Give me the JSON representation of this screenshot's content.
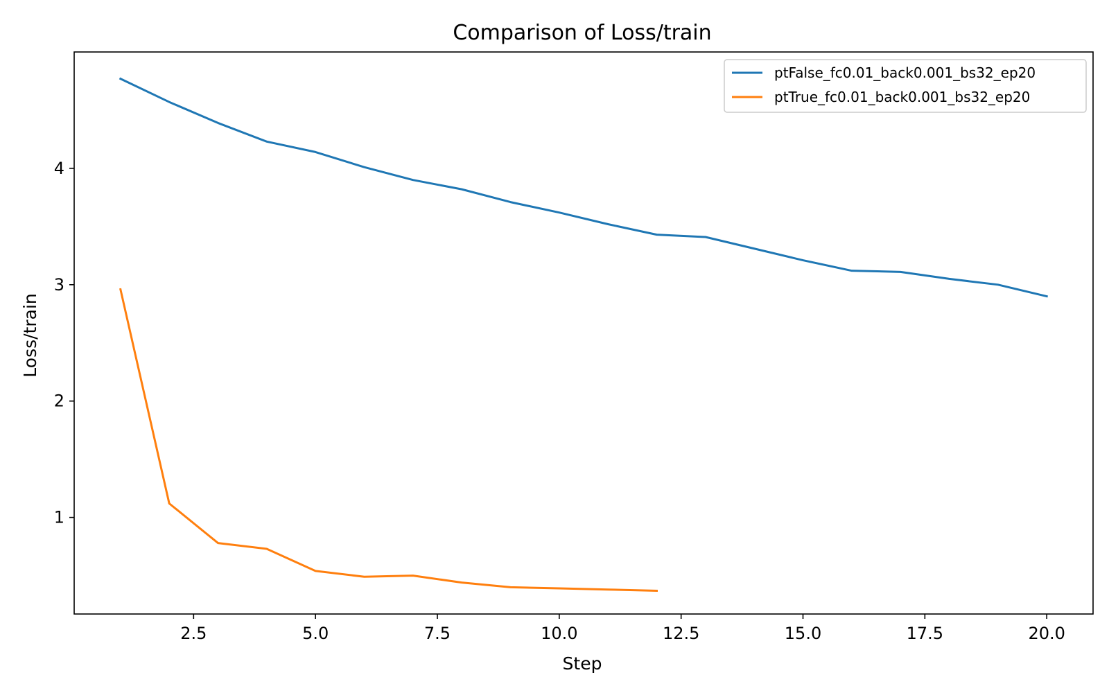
{
  "chart_data": {
    "type": "line",
    "title": "Comparison of Loss/train",
    "xlabel": "Step",
    "ylabel": "Loss/train",
    "xlim": [
      0.05,
      20.95
    ],
    "ylim": [
      0.17,
      5.0
    ],
    "xticks": [
      2.5,
      5.0,
      7.5,
      10.0,
      12.5,
      15.0,
      17.5,
      20.0
    ],
    "xtick_labels": [
      "2.5",
      "5.0",
      "7.5",
      "10.0",
      "12.5",
      "15.0",
      "17.5",
      "20.0"
    ],
    "yticks": [
      1,
      2,
      3,
      4
    ],
    "ytick_labels": [
      "1",
      "2",
      "3",
      "4"
    ],
    "grid": false,
    "legend_position": "top-right",
    "series": [
      {
        "name": "ptFalse_fc0.01_back0.001_bs32_ep20",
        "color": "#1f77b4",
        "x": [
          1,
          2,
          3,
          4,
          5,
          6,
          7,
          8,
          9,
          10,
          11,
          12,
          13,
          14,
          15,
          16,
          17,
          18,
          19,
          20
        ],
        "y": [
          4.77,
          4.57,
          4.39,
          4.23,
          4.14,
          4.01,
          3.9,
          3.82,
          3.71,
          3.62,
          3.52,
          3.43,
          3.41,
          3.31,
          3.21,
          3.12,
          3.11,
          3.05,
          3.0,
          2.9
        ]
      },
      {
        "name": "ptTrue_fc0.01_back0.001_bs32_ep20",
        "color": "#ff7f0e",
        "x": [
          1,
          2,
          3,
          4,
          5,
          6,
          7,
          8,
          9,
          10,
          11,
          12
        ],
        "y": [
          2.96,
          1.12,
          0.78,
          0.73,
          0.54,
          0.49,
          0.5,
          0.44,
          0.4,
          0.39,
          0.38,
          0.37
        ]
      }
    ]
  }
}
